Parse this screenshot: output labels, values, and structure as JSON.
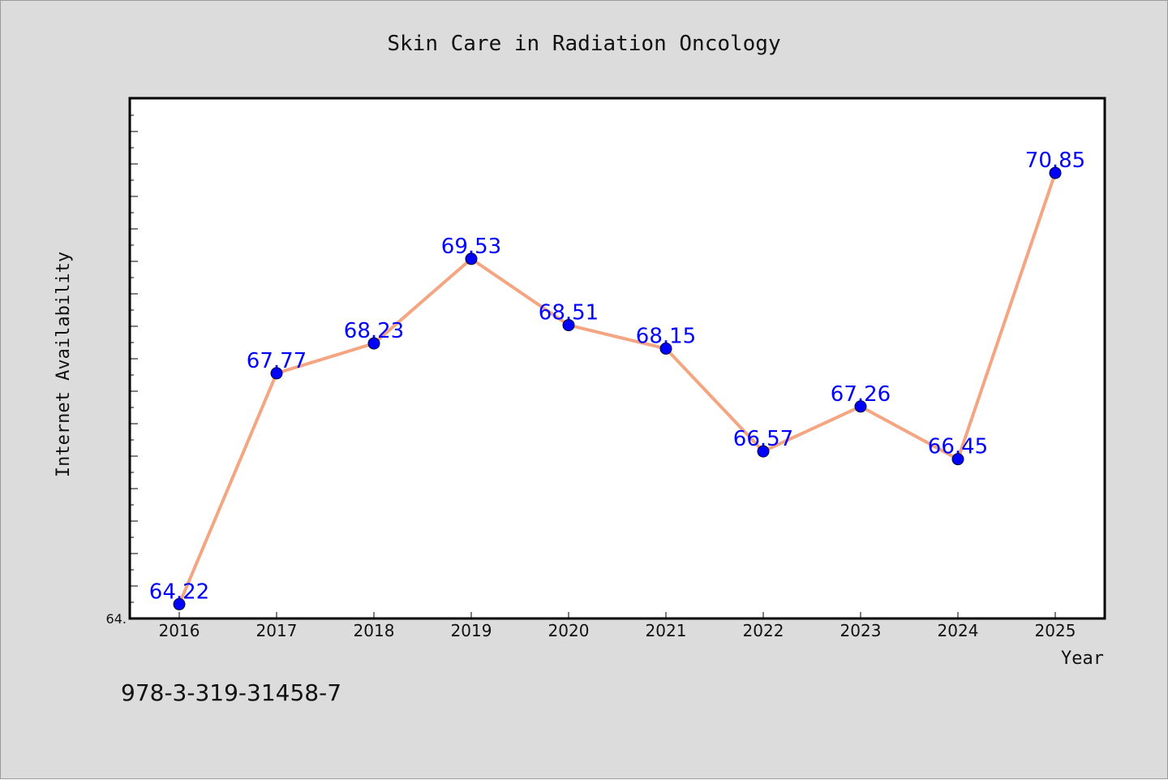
{
  "chart_data": {
    "type": "line",
    "title": "Skin Care in Radiation Oncology",
    "xlabel": "Year",
    "ylabel": "Internet Availability",
    "categories": [
      "2016",
      "2017",
      "2018",
      "2019",
      "2020",
      "2021",
      "2022",
      "2023",
      "2024",
      "2025"
    ],
    "series": [
      {
        "values": [
          64.22,
          67.77,
          68.23,
          69.53,
          68.51,
          68.15,
          66.57,
          67.26,
          66.45,
          70.85
        ],
        "labels": [
          "64.22",
          "67.77",
          "68.23",
          "69.53",
          "68.51",
          "68.15",
          "66.57",
          "67.26",
          "66.45",
          "70.85"
        ],
        "line_color": "#f4a582",
        "marker_color": "#0000ff"
      }
    ],
    "ylim": [
      64.0,
      72.0
    ],
    "y_tick_labels": [
      "64."
    ],
    "grid": false,
    "label_color": "#0000ff"
  },
  "footer": {
    "text": "978-3-319-31458-7"
  }
}
